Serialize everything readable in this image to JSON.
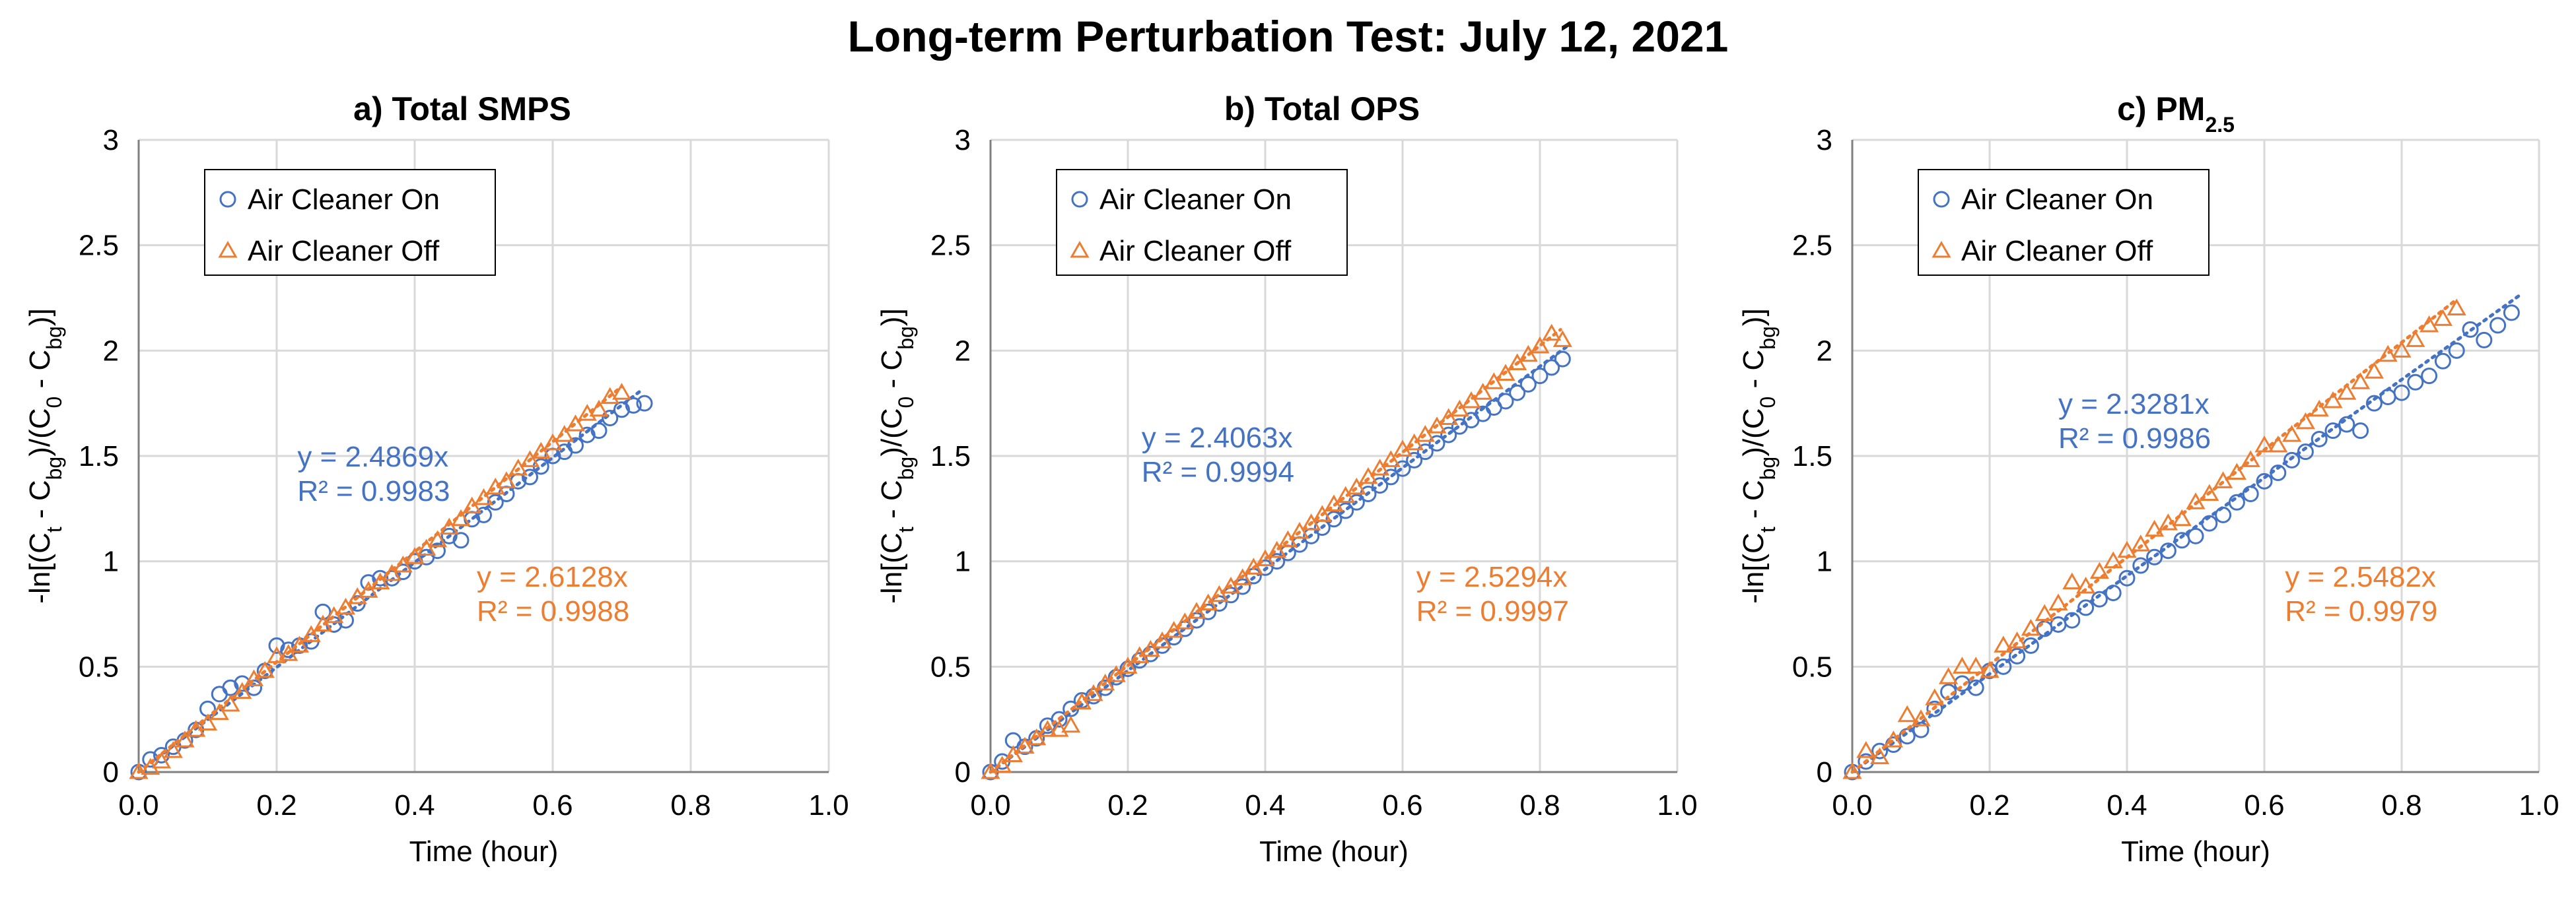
{
  "title": "Long-term Perturbation Test: July 12, 2021",
  "colors": {
    "on": "#4472C4",
    "off": "#ED7D31",
    "grid": "#D9D9D9",
    "axis": "#808080"
  },
  "chart_data": [
    {
      "type": "scatter",
      "title_parts": {
        "main": "a) Total SMPS",
        "sub": ""
      },
      "xlabel": "Time (hour)",
      "ylabel_parts": [
        "-ln[(C",
        "t",
        " - C",
        "bg",
        ")/(C",
        "0",
        " - C",
        "bg",
        ")]"
      ],
      "xlim": [
        0,
        1.0
      ],
      "ylim": [
        0,
        3
      ],
      "xticks": [
        "0.0",
        "0.2",
        "0.4",
        "0.6",
        "0.8",
        "1.0"
      ],
      "yticks": [
        "0",
        "0.5",
        "1",
        "1.5",
        "2",
        "2.5",
        "3"
      ],
      "legend": [
        "Air Cleaner On",
        "Air Cleaner Off"
      ],
      "series": [
        {
          "name": "Air Cleaner On",
          "marker": "circle",
          "fit": {
            "slope": 2.4869,
            "equation": "y = 2.4869x",
            "r2": "R² = 0.9983",
            "x_end": 0.73
          },
          "x": [
            0.0,
            0.017,
            0.033,
            0.05,
            0.067,
            0.083,
            0.1,
            0.117,
            0.133,
            0.15,
            0.167,
            0.183,
            0.2,
            0.217,
            0.233,
            0.25,
            0.267,
            0.283,
            0.3,
            0.317,
            0.333,
            0.35,
            0.367,
            0.383,
            0.4,
            0.417,
            0.433,
            0.45,
            0.467,
            0.483,
            0.5,
            0.517,
            0.533,
            0.55,
            0.567,
            0.583,
            0.6,
            0.617,
            0.633,
            0.65,
            0.667,
            0.683,
            0.7,
            0.717,
            0.733
          ],
          "y": [
            0.0,
            0.06,
            0.08,
            0.12,
            0.15,
            0.2,
            0.3,
            0.37,
            0.4,
            0.42,
            0.4,
            0.48,
            0.6,
            0.58,
            0.6,
            0.62,
            0.76,
            0.7,
            0.72,
            0.8,
            0.9,
            0.92,
            0.92,
            0.95,
            1.0,
            1.02,
            1.05,
            1.12,
            1.1,
            1.2,
            1.22,
            1.28,
            1.32,
            1.38,
            1.4,
            1.45,
            1.5,
            1.52,
            1.55,
            1.6,
            1.62,
            1.68,
            1.72,
            1.74,
            1.75
          ]
        },
        {
          "name": "Air Cleaner Off",
          "marker": "triangle",
          "fit": {
            "slope": 2.6128,
            "equation": "y = 2.6128x",
            "r2": "R² = 0.9988",
            "x_end": 0.7
          },
          "x": [
            0.0,
            0.017,
            0.033,
            0.05,
            0.067,
            0.083,
            0.1,
            0.117,
            0.133,
            0.15,
            0.167,
            0.183,
            0.2,
            0.217,
            0.233,
            0.25,
            0.267,
            0.283,
            0.3,
            0.317,
            0.333,
            0.35,
            0.367,
            0.383,
            0.4,
            0.417,
            0.433,
            0.45,
            0.467,
            0.483,
            0.5,
            0.517,
            0.533,
            0.55,
            0.567,
            0.583,
            0.6,
            0.617,
            0.633,
            0.65,
            0.667,
            0.683,
            0.7
          ],
          "y": [
            0.0,
            0.02,
            0.05,
            0.1,
            0.15,
            0.2,
            0.23,
            0.28,
            0.32,
            0.38,
            0.44,
            0.48,
            0.55,
            0.56,
            0.6,
            0.65,
            0.7,
            0.74,
            0.78,
            0.83,
            0.86,
            0.9,
            0.94,
            0.98,
            1.02,
            1.06,
            1.1,
            1.16,
            1.2,
            1.26,
            1.3,
            1.35,
            1.38,
            1.44,
            1.48,
            1.52,
            1.56,
            1.6,
            1.65,
            1.7,
            1.72,
            1.78,
            1.8
          ]
        }
      ],
      "equation_pos": {
        "on": [
          0.23,
          1.45
        ],
        "off": [
          0.49,
          0.88
        ]
      }
    },
    {
      "type": "scatter",
      "title_parts": {
        "main": "b) Total OPS",
        "sub": ""
      },
      "xlabel": "Time (hour)",
      "ylabel_parts": [
        "-ln[(C",
        "t",
        " - C",
        "bg",
        ")/(C",
        "0",
        " - C",
        "bg",
        ")]"
      ],
      "xlim": [
        0,
        1.0
      ],
      "ylim": [
        0,
        3
      ],
      "xticks": [
        "0.0",
        "0.2",
        "0.4",
        "0.6",
        "0.8",
        "1.0"
      ],
      "yticks": [
        "0",
        "0.5",
        "1",
        "1.5",
        "2",
        "2.5",
        "3"
      ],
      "legend": [
        "Air Cleaner On",
        "Air Cleaner Off"
      ],
      "series": [
        {
          "name": "Air Cleaner On",
          "marker": "circle",
          "fit": {
            "slope": 2.4063,
            "equation": "y = 2.4063x",
            "r2": "R² = 0.9994",
            "x_end": 0.84
          },
          "x": [
            0.0,
            0.017,
            0.033,
            0.05,
            0.067,
            0.083,
            0.1,
            0.117,
            0.133,
            0.15,
            0.167,
            0.183,
            0.2,
            0.217,
            0.233,
            0.25,
            0.267,
            0.283,
            0.3,
            0.317,
            0.333,
            0.35,
            0.367,
            0.383,
            0.4,
            0.417,
            0.433,
            0.45,
            0.467,
            0.483,
            0.5,
            0.517,
            0.533,
            0.55,
            0.567,
            0.583,
            0.6,
            0.617,
            0.633,
            0.65,
            0.667,
            0.683,
            0.7,
            0.717,
            0.733,
            0.75,
            0.767,
            0.783,
            0.8,
            0.817,
            0.833
          ],
          "y": [
            0.0,
            0.05,
            0.15,
            0.12,
            0.16,
            0.22,
            0.25,
            0.3,
            0.34,
            0.36,
            0.4,
            0.45,
            0.49,
            0.53,
            0.56,
            0.6,
            0.64,
            0.68,
            0.72,
            0.76,
            0.8,
            0.84,
            0.88,
            0.93,
            0.97,
            1.0,
            1.04,
            1.08,
            1.12,
            1.16,
            1.2,
            1.24,
            1.28,
            1.32,
            1.36,
            1.4,
            1.44,
            1.48,
            1.52,
            1.56,
            1.6,
            1.64,
            1.67,
            1.7,
            1.73,
            1.76,
            1.8,
            1.84,
            1.88,
            1.92,
            1.96
          ]
        },
        {
          "name": "Air Cleaner Off",
          "marker": "triangle",
          "fit": {
            "slope": 2.5294,
            "equation": "y = 2.5294x",
            "r2": "R² = 0.9997",
            "x_end": 0.83
          },
          "x": [
            0.0,
            0.017,
            0.033,
            0.05,
            0.067,
            0.083,
            0.1,
            0.117,
            0.133,
            0.15,
            0.167,
            0.183,
            0.2,
            0.217,
            0.233,
            0.25,
            0.267,
            0.283,
            0.3,
            0.317,
            0.333,
            0.35,
            0.367,
            0.383,
            0.4,
            0.417,
            0.433,
            0.45,
            0.467,
            0.483,
            0.5,
            0.517,
            0.533,
            0.55,
            0.567,
            0.583,
            0.6,
            0.617,
            0.633,
            0.65,
            0.667,
            0.683,
            0.7,
            0.717,
            0.733,
            0.75,
            0.767,
            0.783,
            0.8,
            0.817,
            0.833
          ],
          "y": [
            0.0,
            0.03,
            0.08,
            0.12,
            0.16,
            0.2,
            0.2,
            0.22,
            0.33,
            0.37,
            0.42,
            0.46,
            0.5,
            0.55,
            0.58,
            0.62,
            0.67,
            0.71,
            0.76,
            0.8,
            0.84,
            0.88,
            0.92,
            0.97,
            1.01,
            1.05,
            1.1,
            1.14,
            1.18,
            1.22,
            1.27,
            1.31,
            1.35,
            1.4,
            1.44,
            1.48,
            1.53,
            1.56,
            1.6,
            1.64,
            1.68,
            1.72,
            1.76,
            1.8,
            1.85,
            1.89,
            1.94,
            1.98,
            2.02,
            2.08,
            2.05
          ]
        }
      ],
      "equation_pos": {
        "on": [
          0.22,
          1.54
        ],
        "off": [
          0.62,
          0.88
        ]
      }
    },
    {
      "type": "scatter",
      "title_parts": {
        "main": "c) PM",
        "sub": "2.5"
      },
      "xlabel": "Time (hour)",
      "ylabel_parts": [
        "-ln[(C",
        "t",
        " - C",
        "bg",
        ")/(C",
        "0",
        " - C",
        "bg",
        ")]"
      ],
      "xlim": [
        0,
        1.0
      ],
      "ylim": [
        0,
        3
      ],
      "xticks": [
        "0.0",
        "0.2",
        "0.4",
        "0.6",
        "0.8",
        "1.0"
      ],
      "yticks": [
        "0",
        "0.5",
        "1",
        "1.5",
        "2",
        "2.5",
        "3"
      ],
      "legend": [
        "Air Cleaner On",
        "Air Cleaner Off"
      ],
      "series": [
        {
          "name": "Air Cleaner On",
          "marker": "circle",
          "fit": {
            "slope": 2.3281,
            "equation": "y = 2.3281x",
            "r2": "R² = 0.9986",
            "x_end": 0.97
          },
          "x": [
            0.0,
            0.02,
            0.04,
            0.06,
            0.08,
            0.1,
            0.12,
            0.14,
            0.16,
            0.18,
            0.2,
            0.22,
            0.24,
            0.26,
            0.28,
            0.3,
            0.32,
            0.34,
            0.36,
            0.38,
            0.4,
            0.42,
            0.44,
            0.46,
            0.48,
            0.5,
            0.52,
            0.54,
            0.56,
            0.58,
            0.6,
            0.62,
            0.64,
            0.66,
            0.68,
            0.7,
            0.72,
            0.74,
            0.76,
            0.78,
            0.8,
            0.82,
            0.84,
            0.86,
            0.88,
            0.9,
            0.92,
            0.94,
            0.96
          ],
          "y": [
            0.0,
            0.05,
            0.1,
            0.13,
            0.17,
            0.2,
            0.3,
            0.38,
            0.42,
            0.4,
            0.48,
            0.5,
            0.55,
            0.6,
            0.68,
            0.7,
            0.72,
            0.78,
            0.82,
            0.85,
            0.92,
            0.98,
            1.02,
            1.05,
            1.1,
            1.12,
            1.18,
            1.22,
            1.28,
            1.32,
            1.38,
            1.42,
            1.48,
            1.52,
            1.58,
            1.62,
            1.65,
            1.62,
            1.75,
            1.78,
            1.8,
            1.85,
            1.88,
            1.95,
            2.0,
            2.1,
            2.05,
            2.12,
            2.18
          ]
        },
        {
          "name": "Air Cleaner Off",
          "marker": "triangle",
          "fit": {
            "slope": 2.5482,
            "equation": "y = 2.5482x",
            "r2": "R² = 0.9979",
            "x_end": 0.88
          },
          "x": [
            0.0,
            0.02,
            0.04,
            0.06,
            0.08,
            0.1,
            0.12,
            0.14,
            0.16,
            0.18,
            0.2,
            0.22,
            0.24,
            0.26,
            0.28,
            0.3,
            0.32,
            0.34,
            0.36,
            0.38,
            0.4,
            0.42,
            0.44,
            0.46,
            0.48,
            0.5,
            0.52,
            0.54,
            0.56,
            0.58,
            0.6,
            0.62,
            0.64,
            0.66,
            0.68,
            0.7,
            0.72,
            0.74,
            0.76,
            0.78,
            0.8,
            0.82,
            0.84,
            0.86,
            0.88
          ],
          "y": [
            0.0,
            0.1,
            0.07,
            0.15,
            0.27,
            0.25,
            0.35,
            0.45,
            0.5,
            0.5,
            0.48,
            0.6,
            0.62,
            0.68,
            0.75,
            0.8,
            0.9,
            0.88,
            0.95,
            1.0,
            1.05,
            1.08,
            1.15,
            1.18,
            1.2,
            1.28,
            1.32,
            1.38,
            1.42,
            1.48,
            1.55,
            1.55,
            1.6,
            1.66,
            1.72,
            1.76,
            1.8,
            1.85,
            1.9,
            1.98,
            2.0,
            2.05,
            2.12,
            2.15,
            2.2
          ]
        }
      ],
      "equation_pos": {
        "on": [
          0.3,
          1.7
        ],
        "off": [
          0.63,
          0.88
        ]
      }
    }
  ]
}
